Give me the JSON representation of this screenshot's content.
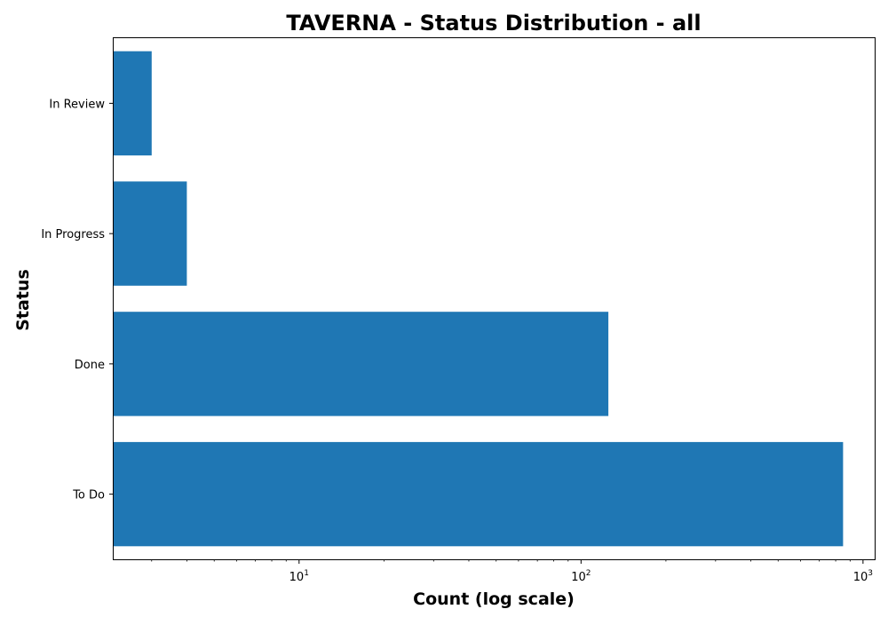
{
  "chart_data": {
    "type": "bar",
    "orientation": "horizontal",
    "title": "TAVERNA - Status Distribution - all",
    "xlabel": "Count (log scale)",
    "ylabel": "Status",
    "x_scale": "log",
    "xlim": [
      2.2,
      1100
    ],
    "x_ticks": [
      {
        "base": "10",
        "exp": "1",
        "value": 10
      },
      {
        "base": "10",
        "exp": "2",
        "value": 100
      },
      {
        "base": "10",
        "exp": "3",
        "value": 1000
      }
    ],
    "categories": [
      "To Do",
      "Done",
      "In Progress",
      "In Review"
    ],
    "values": [
      850,
      125,
      4,
      3
    ],
    "bar_color": "#1f77b4",
    "grid": false,
    "legend": false
  }
}
